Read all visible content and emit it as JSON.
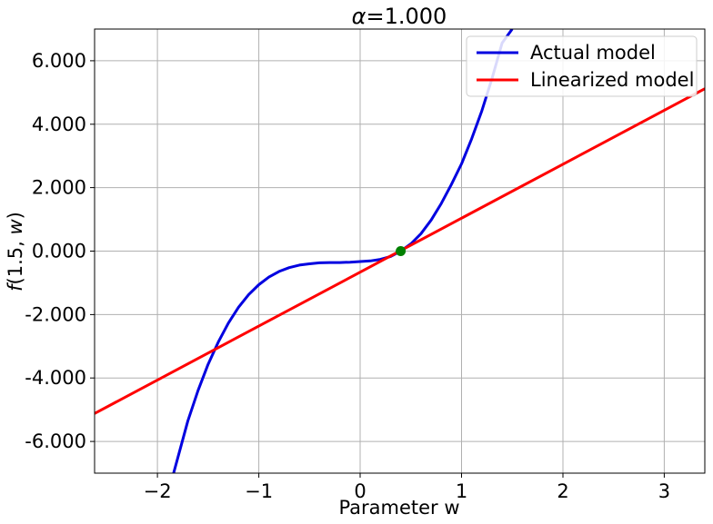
{
  "chart_data": {
    "type": "line",
    "title": "α=1.000",
    "title_symbol": "α",
    "title_value": "=1.000",
    "xlabel": "Parameter w",
    "ylabel": "f(1.5, w)",
    "ylabel_parts": {
      "fname": "f",
      "open": "(1.5, ",
      "var": "w",
      "close": ")"
    },
    "xlim": [
      -2.62,
      3.4
    ],
    "ylim": [
      -7.0,
      7.0
    ],
    "grid": true,
    "legend_position": "top-right",
    "x_ticks": [
      -2,
      -1,
      0,
      1,
      2,
      3
    ],
    "x_tick_labels": [
      "−2",
      "−1",
      "0",
      "1",
      "2",
      "3"
    ],
    "y_ticks": [
      6,
      4,
      2,
      0,
      -2,
      -4,
      -6
    ],
    "y_tick_labels": [
      "6.000",
      "4.000",
      "2.000",
      "0.000",
      "-2.000",
      "-4.000",
      "-6.000"
    ],
    "series": [
      {
        "name": "Actual model",
        "color": "#0000e0",
        "x": [
          -1.84,
          -1.7,
          -1.6,
          -1.5,
          -1.4,
          -1.3,
          -1.2,
          -1.1,
          -1.0,
          -0.9,
          -0.8,
          -0.7,
          -0.6,
          -0.5,
          -0.4,
          -0.3,
          -0.2,
          -0.1,
          0.0,
          0.1,
          0.2,
          0.3,
          0.4,
          0.5,
          0.6,
          0.7,
          0.8,
          0.9,
          1.0,
          1.1,
          1.2,
          1.3,
          1.4,
          1.5
        ],
        "y": [
          -7.0,
          -5.36,
          -4.4,
          -3.57,
          -2.87,
          -2.27,
          -1.77,
          -1.37,
          -1.06,
          -0.82,
          -0.64,
          -0.52,
          -0.44,
          -0.4,
          -0.37,
          -0.36,
          -0.36,
          -0.35,
          -0.33,
          -0.31,
          -0.26,
          -0.17,
          0.0,
          0.23,
          0.55,
          0.98,
          1.5,
          2.1,
          2.75,
          3.54,
          4.42,
          5.43,
          6.56,
          7.0
        ]
      },
      {
        "name": "Linearized model",
        "color": "#ff0000",
        "x": [
          -2.62,
          3.4
        ],
        "y": [
          -5.12,
          5.12
        ]
      }
    ],
    "marker": {
      "x": 0.4,
      "y": 0.0,
      "color": "#008000"
    }
  }
}
